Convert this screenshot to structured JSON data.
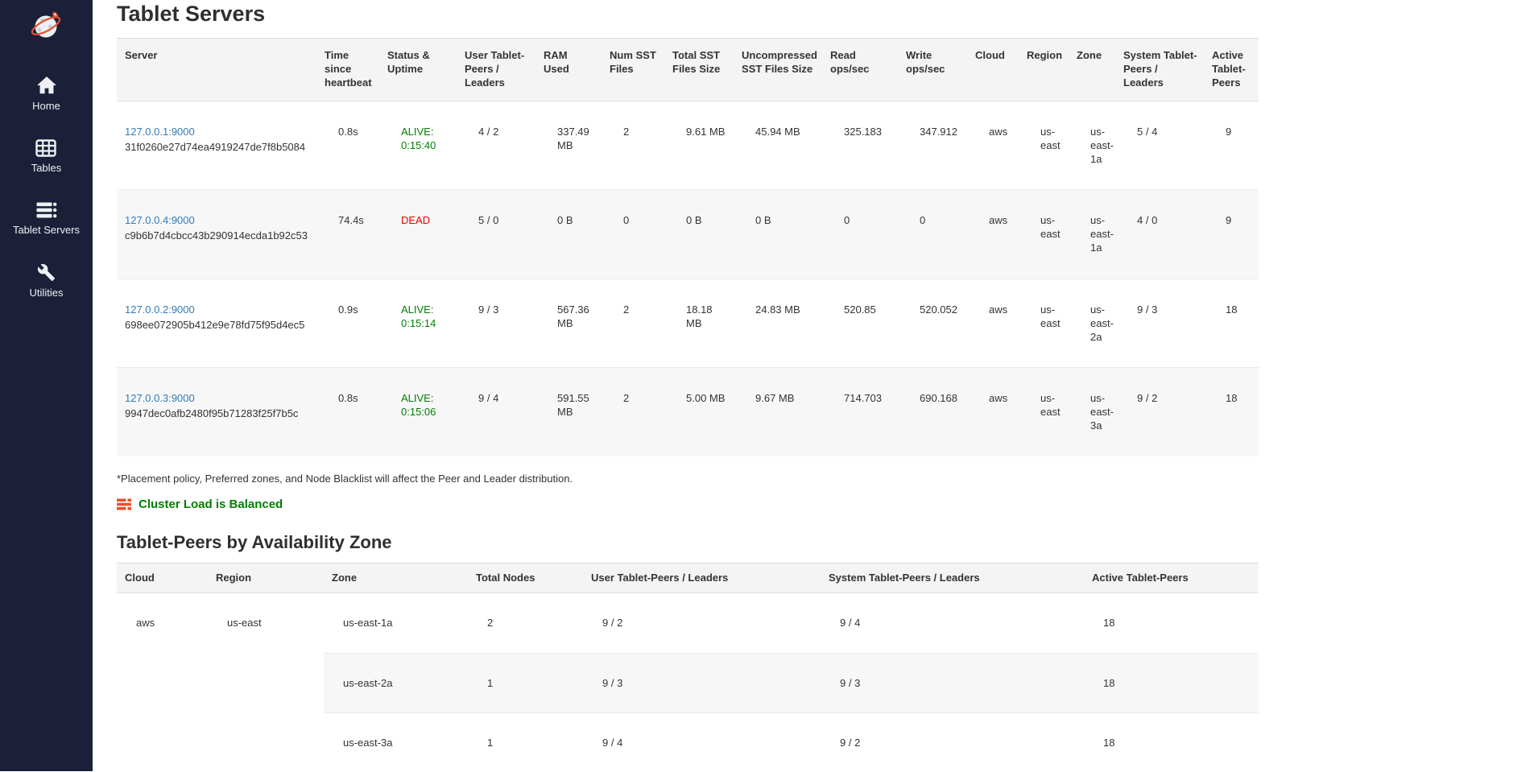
{
  "sidebar": {
    "logo_icon": "globe-rocket-logo",
    "items": [
      {
        "label": "Home",
        "icon": "home-icon"
      },
      {
        "label": "Tables",
        "icon": "tables-grid-icon"
      },
      {
        "label": "Tablet Servers",
        "icon": "tablet-servers-icon"
      },
      {
        "label": "Utilities",
        "icon": "utilities-wrench-icon"
      }
    ]
  },
  "page": {
    "title": "Tablet Servers"
  },
  "tablet_servers_table": {
    "columns": [
      "Server",
      "Time since heartbeat",
      "Status & Uptime",
      "User Tablet-Peers / Leaders",
      "RAM Used",
      "Num SST Files",
      "Total SST Files Size",
      "Uncompressed SST Files Size",
      "Read ops/sec",
      "Write ops/sec",
      "Cloud",
      "Region",
      "Zone",
      "System Tablet-Peers / Leaders",
      "Active Tablet-Peers"
    ],
    "rows": [
      {
        "server_link": "127.0.0.1:9000",
        "uuid": "31f0260e27d74ea4919247de7f8b5084",
        "heartbeat": "0.8s",
        "status": "ALIVE: 0:15:40",
        "status_state": "alive",
        "user_peers": "4 / 2",
        "ram": "337.49 MB",
        "num_sst": "2",
        "total_sst": "9.61 MB",
        "uncompressed_sst": "45.94 MB",
        "read_ops": "325.183",
        "write_ops": "347.912",
        "cloud": "aws",
        "region": "us-east",
        "zone": "us-east-1a",
        "system_peers": "5 / 4",
        "active_peers": "9"
      },
      {
        "server_link": "127.0.0.4:9000",
        "uuid": "c9b6b7d4cbcc43b290914ecda1b92c53",
        "heartbeat": "74.4s",
        "status": "DEAD",
        "status_state": "dead",
        "user_peers": "5 / 0",
        "ram": "0 B",
        "num_sst": "0",
        "total_sst": "0 B",
        "uncompressed_sst": "0 B",
        "read_ops": "0",
        "write_ops": "0",
        "cloud": "aws",
        "region": "us-east",
        "zone": "us-east-1a",
        "system_peers": "4 / 0",
        "active_peers": "9"
      },
      {
        "server_link": "127.0.0.2:9000",
        "uuid": "698ee072905b412e9e78fd75f95d4ec5",
        "heartbeat": "0.9s",
        "status": "ALIVE: 0:15:14",
        "status_state": "alive",
        "user_peers": "9 / 3",
        "ram": "567.36 MB",
        "num_sst": "2",
        "total_sst": "18.18 MB",
        "uncompressed_sst": "24.83 MB",
        "read_ops": "520.85",
        "write_ops": "520.052",
        "cloud": "aws",
        "region": "us-east",
        "zone": "us-east-2a",
        "system_peers": "9 / 3",
        "active_peers": "18"
      },
      {
        "server_link": "127.0.0.3:9000",
        "uuid": "9947dec0afb2480f95b71283f25f7b5c",
        "heartbeat": "0.8s",
        "status": "ALIVE: 0:15:06",
        "status_state": "alive",
        "user_peers": "9 / 4",
        "ram": "591.55 MB",
        "num_sst": "2",
        "total_sst": "5.00 MB",
        "uncompressed_sst": "9.67 MB",
        "read_ops": "714.703",
        "write_ops": "690.168",
        "cloud": "aws",
        "region": "us-east",
        "zone": "us-east-3a",
        "system_peers": "9 / 2",
        "active_peers": "18"
      }
    ]
  },
  "footnote": "*Placement policy, Preferred zones, and Node Blacklist will affect the Peer and Leader distribution.",
  "load_status": {
    "icon": "tasks-icon",
    "label": "Cluster Load is Balanced"
  },
  "az_section": {
    "title": "Tablet-Peers by Availability Zone",
    "columns": [
      "Cloud",
      "Region",
      "Zone",
      "Total Nodes",
      "User Tablet-Peers / Leaders",
      "System Tablet-Peers / Leaders",
      "Active Tablet-Peers"
    ],
    "cloud": "aws",
    "region": "us-east",
    "rows": [
      {
        "zone": "us-east-1a",
        "total_nodes": "2",
        "user_peers": "9 / 2",
        "system_peers": "9 / 4",
        "active_peers": "18"
      },
      {
        "zone": "us-east-2a",
        "total_nodes": "1",
        "user_peers": "9 / 3",
        "system_peers": "9 / 3",
        "active_peers": "18"
      },
      {
        "zone": "us-east-3a",
        "total_nodes": "1",
        "user_peers": "9 / 4",
        "system_peers": "9 / 2",
        "active_peers": "18"
      }
    ]
  },
  "colors": {
    "sidebar_bg": "#1b2038",
    "link_blue": "#337ab7",
    "alive_green": "#008000",
    "dead_red": "#eb0000",
    "balanced_green": "#008000",
    "icon_orange": "#e8512f",
    "table_header_bg": "#f4f4f5",
    "row_stripe_bg": "#f7f7f8"
  }
}
